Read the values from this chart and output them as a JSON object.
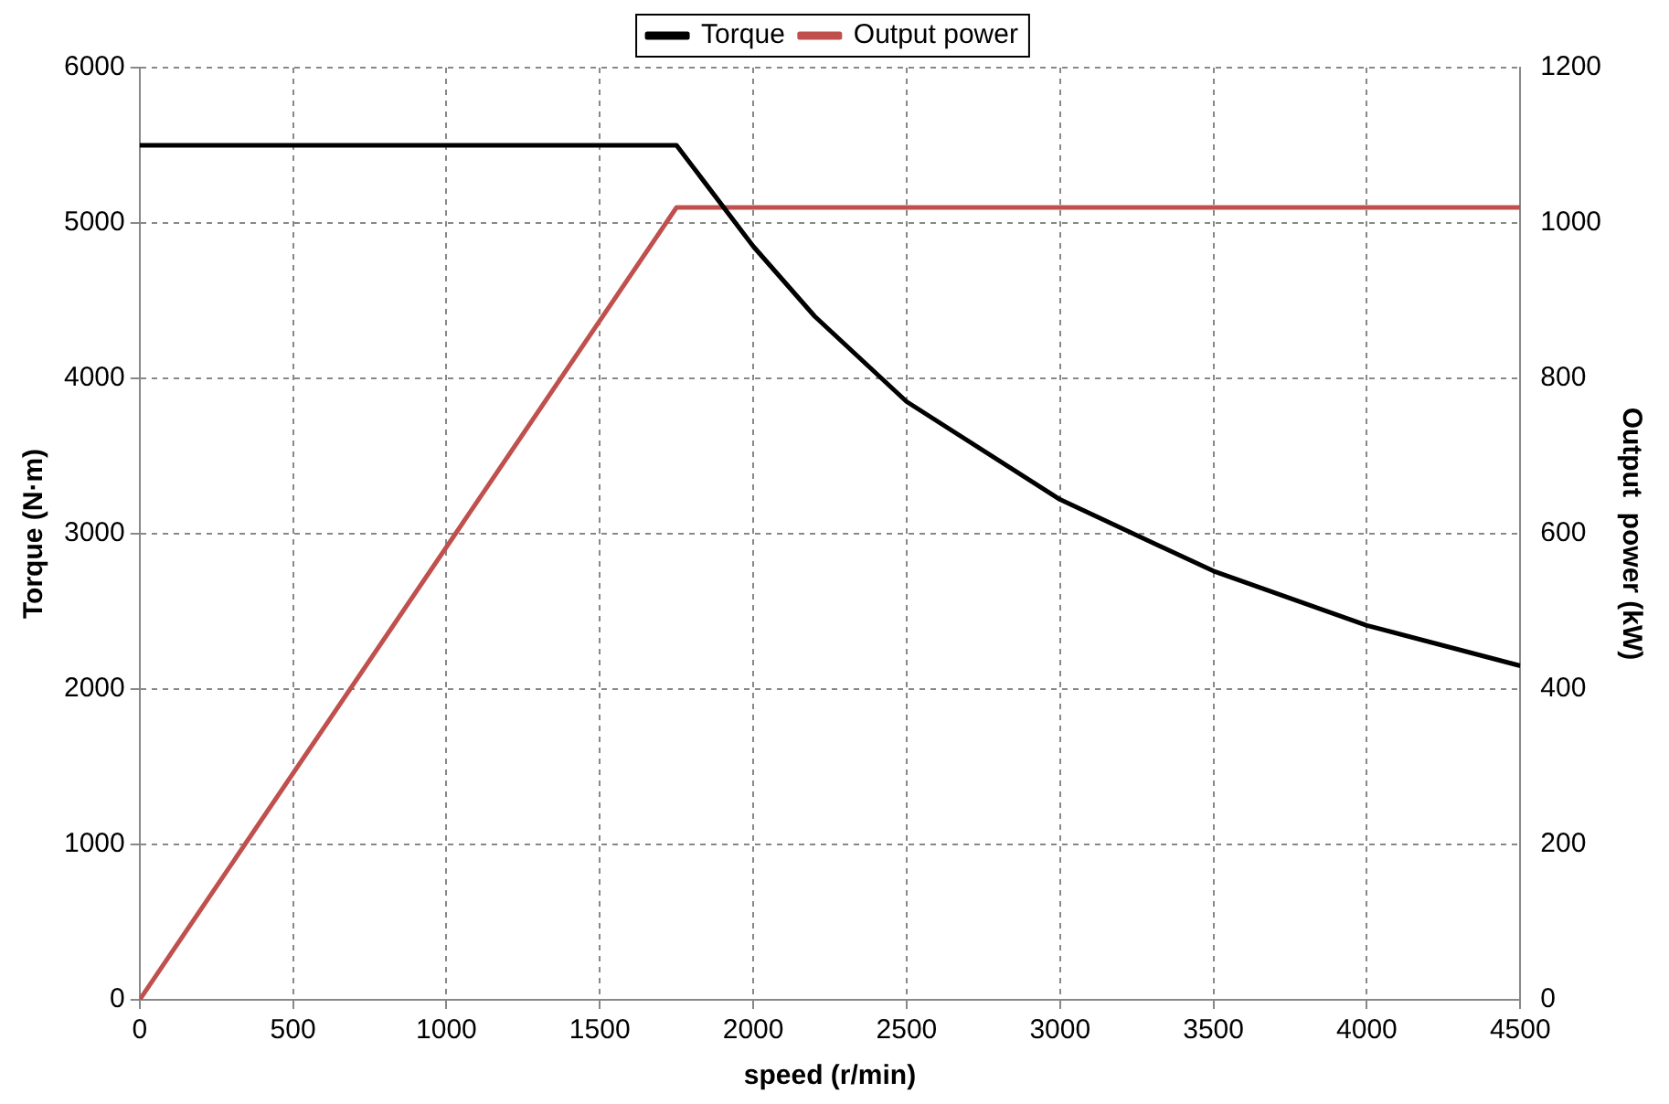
{
  "chart_data": {
    "type": "line",
    "xlabel": "speed (r/min)",
    "ylabel": "Torque (N·m)",
    "y2label": "Output  power (kW)",
    "xlim": [
      0,
      4500
    ],
    "xticks": [
      0,
      500,
      1000,
      1500,
      2000,
      2500,
      3000,
      3500,
      4000,
      4500
    ],
    "ylim": [
      0,
      6000
    ],
    "yticks": [
      0,
      1000,
      2000,
      3000,
      4000,
      5000,
      6000
    ],
    "y2lim": [
      0,
      1200
    ],
    "y2ticks": [
      0,
      200,
      400,
      600,
      800,
      1000,
      1200
    ],
    "grid": true,
    "legend": "top",
    "marker": "none",
    "line_style": "solid",
    "series": [
      {
        "name": "Torque",
        "color": "#000000",
        "x": [
          0,
          1750,
          2000,
          2200,
          2500,
          3000,
          3500,
          4000,
          4500
        ],
        "values": [
          5500,
          5500,
          4850,
          4400,
          3850,
          3220,
          2760,
          2410,
          2150
        ]
      },
      {
        "name": "Output power",
        "color": "#c0504d",
        "axis": "y2",
        "x": [
          0,
          1750,
          4500
        ],
        "values": [
          0,
          1020,
          1020
        ]
      }
    ]
  }
}
